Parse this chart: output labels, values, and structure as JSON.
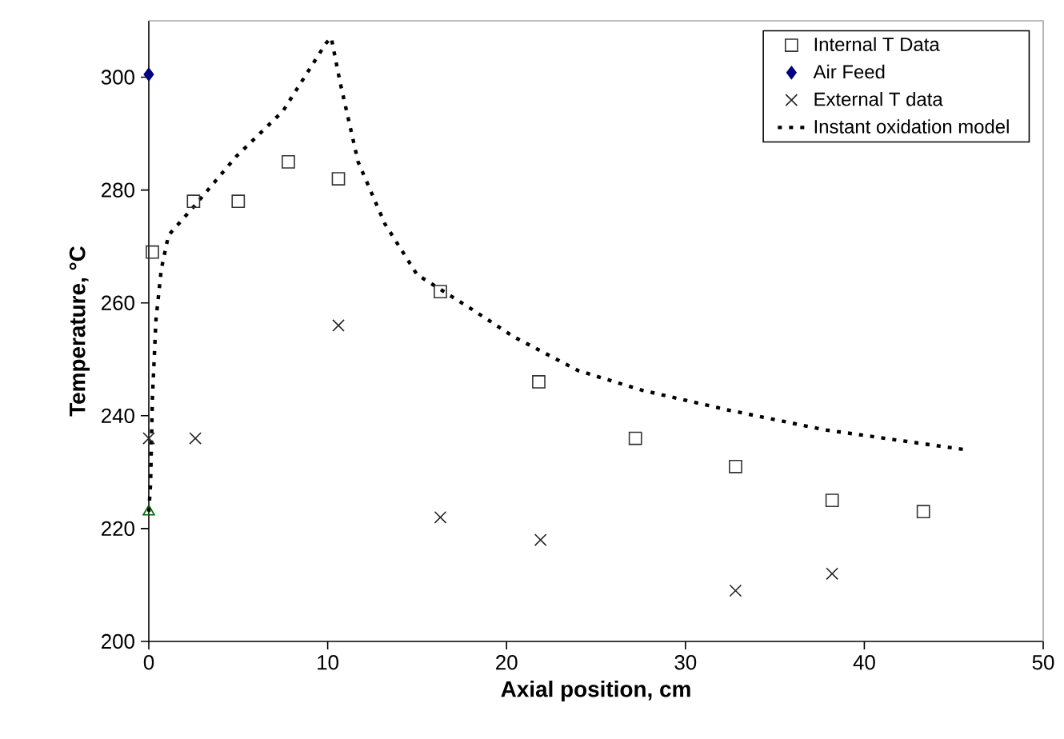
{
  "chart_data": {
    "type": "scatter",
    "xlabel": "Axial position, cm",
    "ylabel": "Temperature, °C",
    "xlim": [
      0,
      50
    ],
    "xticks": [
      0,
      10,
      20,
      30,
      40,
      50
    ],
    "ylim": [
      200,
      310
    ],
    "yticks": [
      200,
      220,
      240,
      260,
      280,
      300
    ],
    "legend": "top right",
    "grid": false,
    "series": [
      {
        "name": "Internal T Data",
        "marker": "square",
        "color": "#333333",
        "x": [
          0.2,
          2.5,
          5.0,
          7.8,
          10.6,
          16.3,
          21.8,
          27.2,
          32.8,
          38.2,
          43.3
        ],
        "values": [
          269,
          278,
          278,
          285,
          282,
          262,
          246,
          236,
          231,
          225,
          223
        ]
      },
      {
        "name": "Air Feed",
        "marker": "diamond",
        "color": "#000080",
        "x": [
          0
        ],
        "values": [
          300.5
        ]
      },
      {
        "name": "External T data",
        "marker": "cross",
        "color": "#222222",
        "x": [
          0,
          2.6,
          10.6,
          16.3,
          21.9,
          32.8,
          38.2
        ],
        "values": [
          236,
          236,
          256,
          222,
          218,
          209,
          212
        ]
      },
      {
        "name": "Instant oxidation model",
        "type": "line",
        "marker": "none",
        "line_style": "dotted",
        "color": "#000000",
        "x": [
          0,
          0.1,
          0.2,
          0.4,
          0.7,
          1.1,
          2.5,
          4.9,
          7.5,
          9.9,
          10.2,
          10.7,
          11.7,
          13.2,
          15.0,
          16.5,
          18.0,
          20.4,
          22.2,
          24.0,
          27.6,
          32.4,
          37.8,
          45.6
        ],
        "values": [
          223,
          228,
          243,
          257,
          266,
          272,
          277,
          286,
          294,
          306,
          307,
          299,
          285,
          274,
          265,
          262,
          259,
          254,
          251,
          248,
          244.5,
          241,
          237.5,
          234
        ]
      },
      {
        "marker": "triangle",
        "color": "#006400",
        "x": [
          0
        ],
        "values": [
          223
        ]
      }
    ]
  }
}
